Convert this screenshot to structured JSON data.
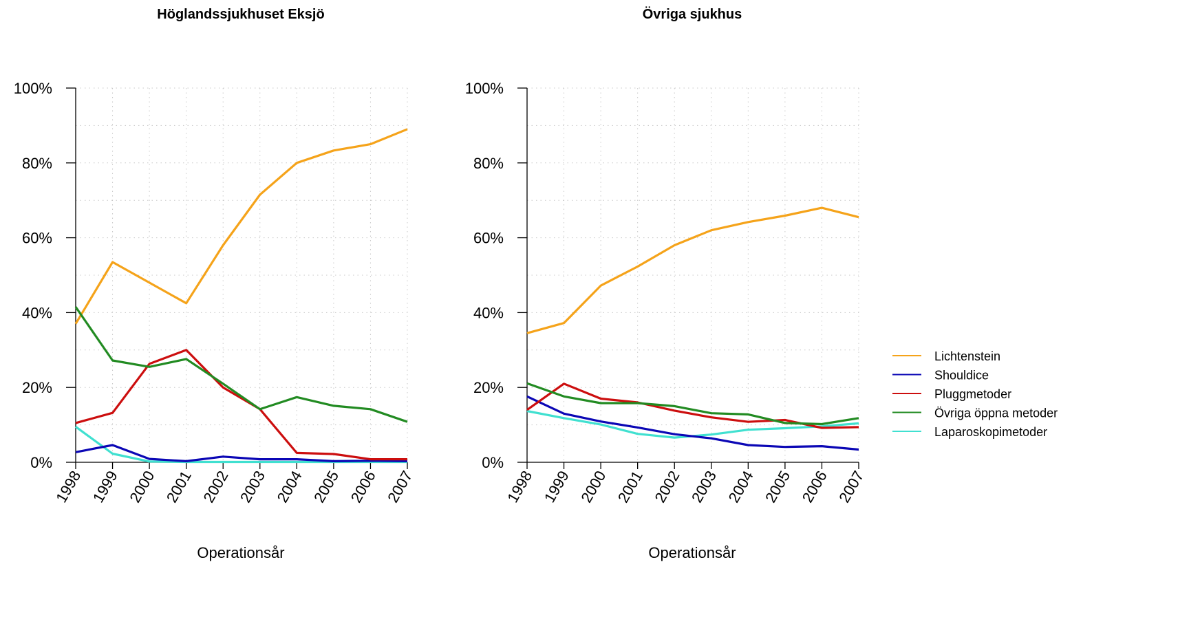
{
  "chart_data": [
    {
      "type": "line",
      "title": "Höglandssjukhuset Eksjö",
      "xlabel": "Operationsår",
      "ylabel": "",
      "x": [
        "1998",
        "1999",
        "2000",
        "2001",
        "2002",
        "2003",
        "2004",
        "2005",
        "2006",
        "2007"
      ],
      "ylim": [
        0,
        100
      ],
      "yticks": [
        "0%",
        "20%",
        "40%",
        "60%",
        "80%",
        "100%"
      ],
      "grid": true,
      "series": [
        {
          "name": "Lichtenstein",
          "color": "#f5a31a",
          "values": [
            37,
            53.5,
            48,
            42.5,
            58,
            71.5,
            80,
            83.3,
            85,
            89
          ]
        },
        {
          "name": "Shouldice",
          "color": "#0b07b5",
          "values": [
            2.7,
            4.6,
            0.9,
            0.3,
            1.5,
            0.8,
            0.8,
            0.3,
            0.4,
            0.3
          ]
        },
        {
          "name": "Pluggmetoder",
          "color": "#cc0e0e",
          "values": [
            10.5,
            13.2,
            26.3,
            30,
            20,
            14.2,
            2.5,
            2.2,
            0.8,
            0.8
          ]
        },
        {
          "name": "Övriga öppna metoder",
          "color": "#228b22",
          "values": [
            41.5,
            27.2,
            25.5,
            27.6,
            21,
            14.2,
            17.4,
            15.1,
            14.2,
            10.8
          ]
        },
        {
          "name": "Laparoskopimetoder",
          "color": "#40e0d0",
          "values": [
            9.5,
            2.3,
            0.2,
            0.1,
            0.1,
            0.1,
            0.1,
            0.1,
            0.1,
            0.1
          ]
        }
      ]
    },
    {
      "type": "line",
      "title": "Övriga sjukhus",
      "xlabel": "Operationsår",
      "ylabel": "",
      "x": [
        "1998",
        "1999",
        "2000",
        "2001",
        "2002",
        "2003",
        "2004",
        "2005",
        "2006",
        "2007"
      ],
      "ylim": [
        0,
        100
      ],
      "yticks": [
        "0%",
        "20%",
        "40%",
        "60%",
        "80%",
        "100%"
      ],
      "grid": true,
      "series": [
        {
          "name": "Lichtenstein",
          "color": "#f5a31a",
          "values": [
            34.5,
            37.2,
            47.2,
            52.3,
            58,
            62,
            64.2,
            65.9,
            68,
            65.5
          ]
        },
        {
          "name": "Shouldice",
          "color": "#0b07b5",
          "values": [
            17.6,
            13,
            10.9,
            9.3,
            7.5,
            6.4,
            4.6,
            4.1,
            4.3,
            3.4
          ]
        },
        {
          "name": "Pluggmetoder",
          "color": "#cc0e0e",
          "values": [
            14,
            21,
            17,
            16,
            13.8,
            12,
            10.8,
            11.3,
            9.2,
            9.4
          ]
        },
        {
          "name": "Övriga öppna metoder",
          "color": "#228b22",
          "values": [
            21.1,
            17.6,
            15.8,
            15.8,
            15,
            13.1,
            12.8,
            10.5,
            10.2,
            11.8
          ]
        },
        {
          "name": "Laparoskopimetoder",
          "color": "#40e0d0",
          "values": [
            13.7,
            11.8,
            10.1,
            7.6,
            6.6,
            7.4,
            8.7,
            9.1,
            9.6,
            10.4
          ]
        }
      ]
    }
  ],
  "legend": {
    "placement": "right",
    "items": [
      {
        "label": "Lichtenstein",
        "color": "#f5a31a"
      },
      {
        "label": "Shouldice",
        "color": "#0b07b5"
      },
      {
        "label": "Pluggmetoder",
        "color": "#cc0e0e"
      },
      {
        "label": "Övriga öppna metoder",
        "color": "#228b22"
      },
      {
        "label": "Laparoskopimetoder",
        "color": "#40e0d0"
      }
    ]
  }
}
